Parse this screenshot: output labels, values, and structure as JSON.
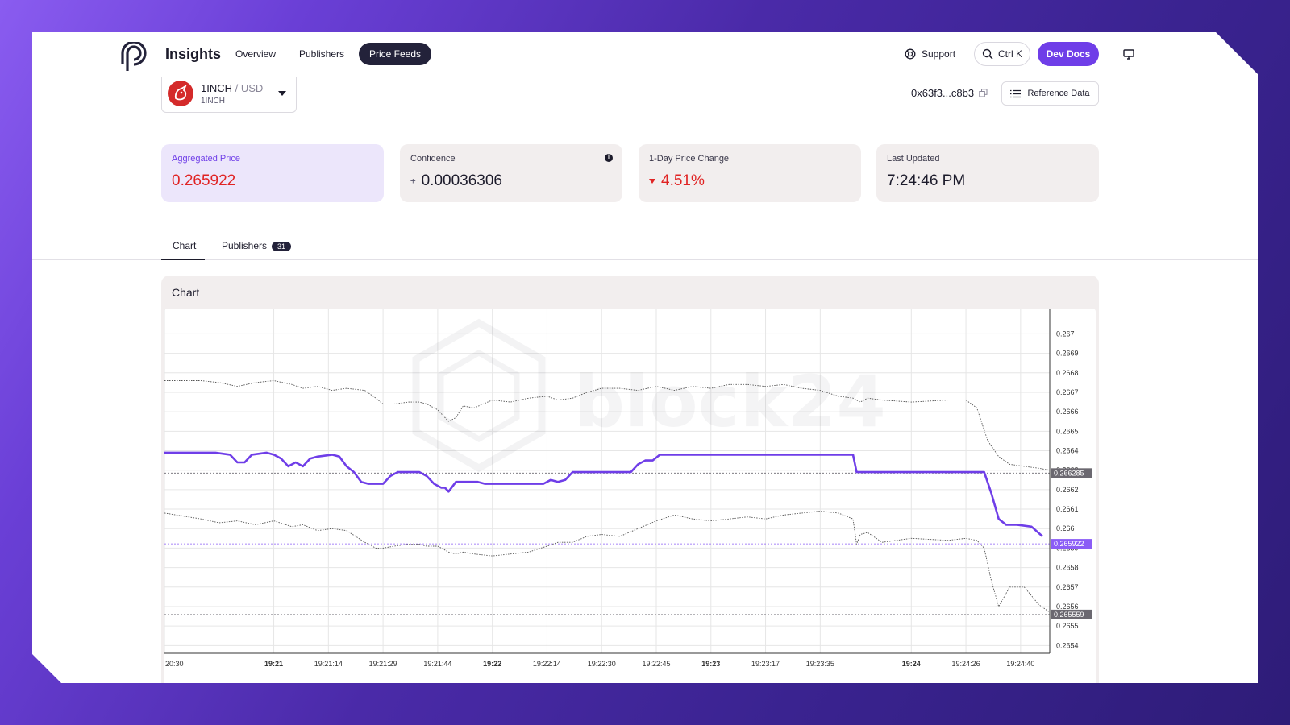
{
  "header": {
    "brand": "Insights",
    "nav": [
      "Overview",
      "Publishers",
      "Price Feeds"
    ],
    "active_nav": "Price Feeds",
    "support": "Support",
    "search_shortcut": "Ctrl K",
    "dev_docs": "Dev Docs"
  },
  "feed": {
    "base": "1INCH",
    "sep_quote": " / USD",
    "symbol": "1INCH",
    "address": "0x63f3...c8b3",
    "reference_data": "Reference Data"
  },
  "stats": {
    "aggregated_price_label": "Aggregated Price",
    "aggregated_price": "0.265922",
    "confidence_label": "Confidence",
    "confidence_prefix": "±",
    "confidence": "0.00036306",
    "change_label": "1-Day Price Change",
    "change": "4.51%",
    "updated_label": "Last Updated",
    "updated": "7:24:46 PM"
  },
  "tabs": {
    "chart": "Chart",
    "publishers": "Publishers",
    "publishers_count": "31"
  },
  "panel": {
    "title": "Chart"
  },
  "watermark": "block24",
  "colors": {
    "accent": "#6f3ee8",
    "negative": "#e02424",
    "dark": "#23223a"
  },
  "chart_data": {
    "type": "line",
    "y_ticks": [
      "0.267",
      "0.2669",
      "0.2668",
      "0.2667",
      "0.2666",
      "0.2665",
      "0.2664",
      "0.2663",
      "0.2662",
      "0.2661",
      "0.266",
      "0.2659",
      "0.2658",
      "0.2657",
      "0.2656",
      "0.2655",
      "0.2654"
    ],
    "ylim": [
      0.26536,
      0.26713
    ],
    "x_ticks": [
      {
        "label": "20:30",
        "bold": false,
        "t": 0
      },
      {
        "label": "19:21",
        "bold": true,
        "t": 30
      },
      {
        "label": "19:21:14",
        "bold": false,
        "t": 45
      },
      {
        "label": "19:21:29",
        "bold": false,
        "t": 60
      },
      {
        "label": "19:21:44",
        "bold": false,
        "t": 75
      },
      {
        "label": "19:22",
        "bold": true,
        "t": 90
      },
      {
        "label": "19:22:14",
        "bold": false,
        "t": 105
      },
      {
        "label": "19:22:30",
        "bold": false,
        "t": 120
      },
      {
        "label": "19:22:45",
        "bold": false,
        "t": 135
      },
      {
        "label": "19:23",
        "bold": true,
        "t": 150
      },
      {
        "label": "19:23:17",
        "bold": false,
        "t": 165
      },
      {
        "label": "19:23:35",
        "bold": false,
        "t": 180
      },
      {
        "label": "19:24",
        "bold": true,
        "t": 205
      },
      {
        "label": "19:24:26",
        "bold": false,
        "t": 220
      },
      {
        "label": "19:24:40",
        "bold": false,
        "t": 235
      }
    ],
    "tlim": [
      0,
      243
    ],
    "price_tags": [
      {
        "value": 0.266285,
        "label": "0.266285",
        "color": "#6b6870"
      },
      {
        "value": 0.265922,
        "label": "0.265922",
        "color": "#8b5cf6"
      },
      {
        "value": 0.265559,
        "label": "0.265559",
        "color": "#6b6870"
      }
    ],
    "series": [
      {
        "name": "",
        "role": "price",
        "t": [
          0,
          10,
          14,
          18,
          20,
          22,
          24,
          28,
          30,
          32,
          34,
          36,
          38,
          40,
          42,
          46,
          48,
          50,
          52,
          54,
          56,
          60,
          62,
          64,
          66,
          68,
          70,
          72,
          74,
          76,
          77,
          78,
          80,
          82,
          84,
          86,
          88,
          90,
          100,
          104,
          106,
          108,
          110,
          112,
          116,
          120,
          128,
          130,
          132,
          134,
          136,
          150,
          160,
          170,
          180,
          189,
          190,
          192,
          200,
          220,
          225,
          227,
          229,
          231,
          234,
          238,
          241
        ],
        "y": [
          0.26639,
          0.26639,
          0.26639,
          0.26638,
          0.26634,
          0.26634,
          0.26638,
          0.26639,
          0.26638,
          0.26636,
          0.26632,
          0.26634,
          0.26632,
          0.26636,
          0.26637,
          0.26638,
          0.26637,
          0.26632,
          0.26629,
          0.26624,
          0.26623,
          0.26623,
          0.26627,
          0.26629,
          0.26629,
          0.26629,
          0.26629,
          0.26627,
          0.26623,
          0.26621,
          0.26621,
          0.26619,
          0.26624,
          0.26624,
          0.26624,
          0.26624,
          0.26623,
          0.26623,
          0.26623,
          0.26623,
          0.26625,
          0.26624,
          0.26625,
          0.26629,
          0.26629,
          0.26629,
          0.26629,
          0.26633,
          0.26635,
          0.26635,
          0.26638,
          0.26638,
          0.26638,
          0.26638,
          0.26638,
          0.26638,
          0.26629,
          0.26629,
          0.26629,
          0.26629,
          0.26629,
          0.26618,
          0.26605,
          0.26602,
          0.26602,
          0.26601,
          0.26596
        ]
      },
      {
        "name": "",
        "role": "upper band",
        "t": [
          0,
          10,
          15,
          20,
          25,
          30,
          35,
          38,
          42,
          46,
          50,
          55,
          58,
          60,
          63,
          67,
          70,
          72,
          75,
          78,
          80,
          82,
          85,
          90,
          95,
          100,
          105,
          108,
          112,
          116,
          120,
          125,
          130,
          135,
          140,
          145,
          150,
          155,
          160,
          165,
          170,
          175,
          180,
          185,
          189,
          191,
          193,
          197,
          205,
          215,
          220,
          223,
          226,
          229,
          232,
          236,
          240,
          243
        ],
        "y": [
          0.26676,
          0.26676,
          0.26675,
          0.26673,
          0.26675,
          0.26676,
          0.26674,
          0.26672,
          0.26673,
          0.26671,
          0.26672,
          0.26671,
          0.26667,
          0.26664,
          0.26664,
          0.26665,
          0.26665,
          0.26664,
          0.26661,
          0.26655,
          0.26657,
          0.26663,
          0.26662,
          0.26666,
          0.26665,
          0.26667,
          0.26668,
          0.26666,
          0.26667,
          0.2667,
          0.26672,
          0.26672,
          0.26671,
          0.26673,
          0.26671,
          0.26673,
          0.26672,
          0.26674,
          0.26674,
          0.26673,
          0.26674,
          0.26672,
          0.26671,
          0.26668,
          0.26667,
          0.26665,
          0.26667,
          0.26666,
          0.26665,
          0.26666,
          0.26666,
          0.26662,
          0.26645,
          0.26637,
          0.26633,
          0.26632,
          0.26631,
          0.2663
        ]
      },
      {
        "name": "",
        "role": "lower band",
        "t": [
          0,
          10,
          15,
          20,
          25,
          30,
          35,
          38,
          42,
          46,
          50,
          55,
          58,
          60,
          63,
          67,
          70,
          72,
          75,
          78,
          80,
          82,
          85,
          90,
          95,
          100,
          105,
          108,
          112,
          116,
          120,
          125,
          130,
          135,
          140,
          145,
          150,
          155,
          160,
          165,
          170,
          175,
          180,
          185,
          189,
          190,
          191,
          193,
          197,
          205,
          215,
          220,
          223,
          225,
          227,
          229,
          232,
          236,
          240,
          243
        ],
        "y": [
          0.26608,
          0.26605,
          0.26603,
          0.26604,
          0.26602,
          0.26604,
          0.26601,
          0.26602,
          0.26599,
          0.266,
          0.26599,
          0.26593,
          0.2659,
          0.2659,
          0.26591,
          0.26592,
          0.26592,
          0.26591,
          0.26591,
          0.26588,
          0.26587,
          0.26588,
          0.26587,
          0.26586,
          0.26587,
          0.26588,
          0.26591,
          0.26593,
          0.26593,
          0.26596,
          0.26597,
          0.26596,
          0.266,
          0.26604,
          0.26607,
          0.26605,
          0.26604,
          0.26605,
          0.26606,
          0.26605,
          0.26607,
          0.26608,
          0.26609,
          0.26608,
          0.26605,
          0.26592,
          0.26597,
          0.26598,
          0.26593,
          0.26595,
          0.26594,
          0.26595,
          0.26594,
          0.2659,
          0.26573,
          0.2656,
          0.2657,
          0.2657,
          0.26561,
          0.26557
        ]
      }
    ]
  }
}
